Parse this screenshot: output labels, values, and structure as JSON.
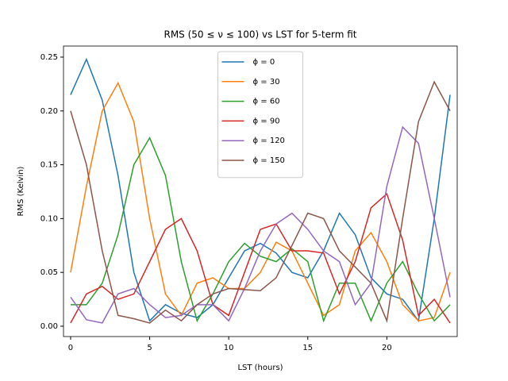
{
  "chart_data": {
    "type": "line",
    "title": "RMS (50 ≤ ν ≤ 100) vs LST for 5-term fit",
    "x_label": "LST (hours)",
    "y_label": "RMS (Kelvin)",
    "x": [
      0,
      1,
      2,
      3,
      4,
      5,
      6,
      7,
      8,
      9,
      10,
      11,
      12,
      13,
      14,
      15,
      16,
      17,
      18,
      19,
      20,
      21,
      22,
      23,
      24
    ],
    "series": [
      {
        "name": "ϕ = 0",
        "color": "#1f77b4",
        "values": [
          0.215,
          0.248,
          0.21,
          0.14,
          0.05,
          0.005,
          0.02,
          0.012,
          0.008,
          0.02,
          0.045,
          0.07,
          0.077,
          0.068,
          0.05,
          0.045,
          0.07,
          0.105,
          0.085,
          0.045,
          0.03,
          0.025,
          0.005,
          0.1,
          0.215
        ]
      },
      {
        "name": "ϕ = 30",
        "color": "#ff7f0e",
        "values": [
          0.05,
          0.13,
          0.2,
          0.226,
          0.19,
          0.1,
          0.03,
          0.01,
          0.04,
          0.045,
          0.035,
          0.035,
          0.05,
          0.078,
          0.07,
          0.04,
          0.01,
          0.02,
          0.07,
          0.087,
          0.06,
          0.02,
          0.005,
          0.008,
          0.05
        ]
      },
      {
        "name": "ϕ = 60",
        "color": "#2ca02c",
        "values": [
          0.02,
          0.02,
          0.04,
          0.085,
          0.15,
          0.175,
          0.14,
          0.06,
          0.005,
          0.03,
          0.06,
          0.077,
          0.065,
          0.06,
          0.072,
          0.06,
          0.005,
          0.04,
          0.04,
          0.005,
          0.04,
          0.06,
          0.03,
          0.005,
          0.02
        ]
      },
      {
        "name": "ϕ = 90",
        "color": "#d62728",
        "values": [
          0.003,
          0.03,
          0.037,
          0.025,
          0.03,
          0.06,
          0.09,
          0.1,
          0.07,
          0.02,
          0.01,
          0.05,
          0.09,
          0.095,
          0.07,
          0.07,
          0.068,
          0.03,
          0.06,
          0.11,
          0.123,
          0.08,
          0.01,
          0.025,
          0.003
        ]
      },
      {
        "name": "ϕ = 120",
        "color": "#9467bd",
        "values": [
          0.027,
          0.006,
          0.003,
          0.03,
          0.035,
          0.02,
          0.008,
          0.01,
          0.02,
          0.02,
          0.005,
          0.035,
          0.07,
          0.095,
          0.105,
          0.09,
          0.07,
          0.06,
          0.02,
          0.04,
          0.13,
          0.185,
          0.17,
          0.1,
          0.027
        ]
      },
      {
        "name": "ϕ = 150",
        "color": "#8c564b",
        "values": [
          0.2,
          0.15,
          0.07,
          0.01,
          0.007,
          0.003,
          0.015,
          0.005,
          0.02,
          0.03,
          0.035,
          0.034,
          0.033,
          0.045,
          0.075,
          0.105,
          0.1,
          0.07,
          0.055,
          0.04,
          0.005,
          0.1,
          0.19,
          0.227,
          0.2
        ]
      }
    ],
    "xlim": [
      -0.45,
      24.45
    ],
    "ylim": [
      -0.0096,
      0.2603
    ],
    "xticks": [
      0,
      5,
      10,
      15,
      20
    ],
    "yticks": [
      {
        "value": 0,
        "label": "0.00"
      },
      {
        "value": 0.05,
        "label": "0.05"
      },
      {
        "value": 0.1,
        "label": "0.10"
      },
      {
        "value": 0.15,
        "label": "0.15"
      },
      {
        "value": 0.2,
        "label": "0.20"
      },
      {
        "value": 0.25,
        "label": "0.25"
      }
    ],
    "legend": "upper center"
  }
}
